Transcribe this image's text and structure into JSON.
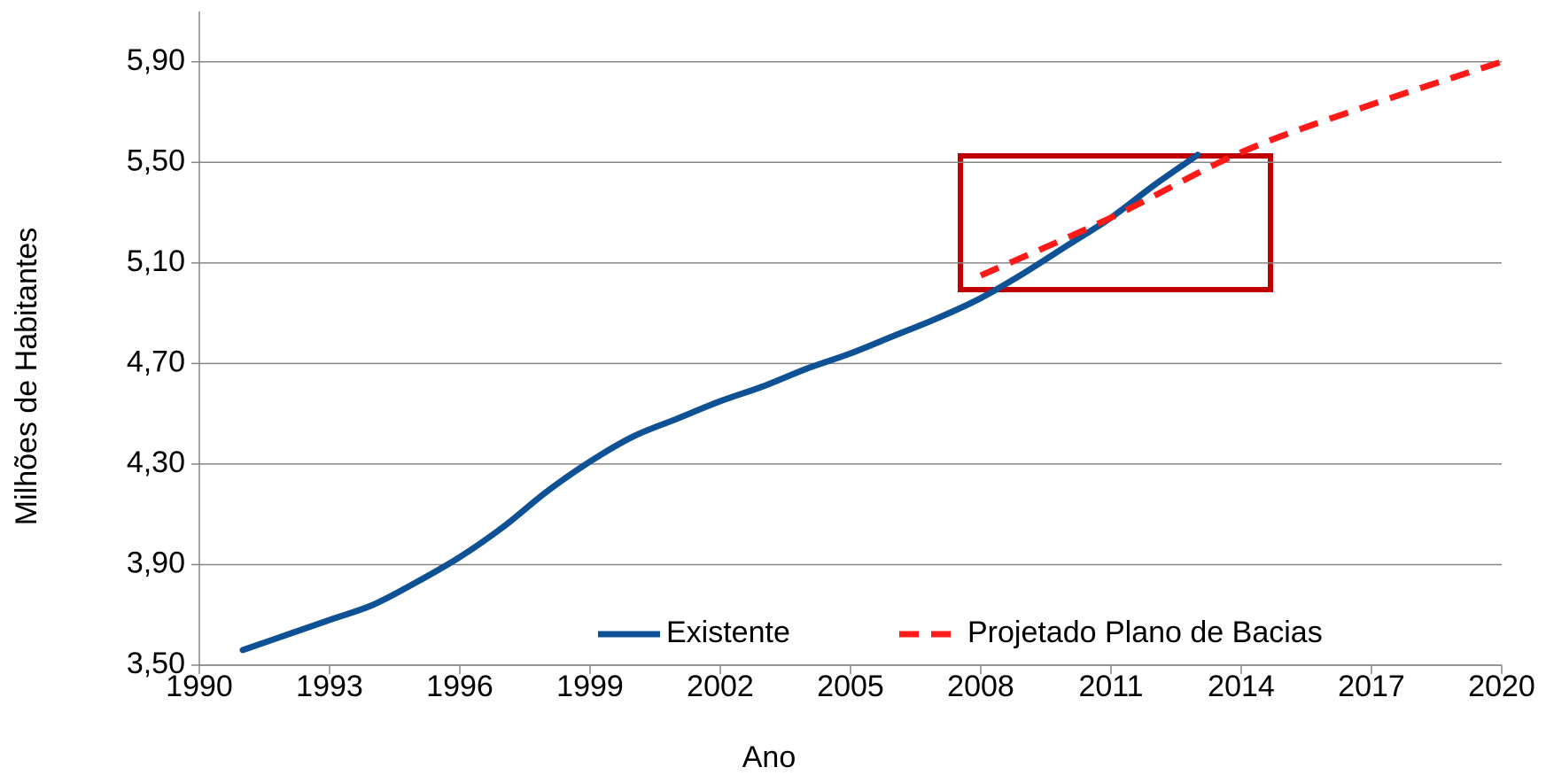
{
  "chart_data": {
    "type": "line",
    "x_label": "Ano",
    "y_label": "Milhões de Habitantes",
    "xlim": [
      1990,
      2020
    ],
    "xticks": [
      1990,
      1993,
      1996,
      1999,
      2002,
      2005,
      2008,
      2011,
      2014,
      2017,
      2020
    ],
    "ylim": [
      3.5,
      6.1
    ],
    "yticks": [
      {
        "value": 3.5,
        "label": "3,50"
      },
      {
        "value": 3.9,
        "label": "3,90"
      },
      {
        "value": 4.3,
        "label": "4,30"
      },
      {
        "value": 4.7,
        "label": "4,70"
      },
      {
        "value": 5.1,
        "label": "5,10"
      },
      {
        "value": 5.5,
        "label": "5,50"
      },
      {
        "value": 5.9,
        "label": "5,90"
      }
    ],
    "grid": true,
    "series": [
      {
        "name": "Existente",
        "color": "#0f5195",
        "dash": false,
        "x": [
          1991,
          1992,
          1993,
          1994,
          1995,
          1996,
          1997,
          1998,
          1999,
          2000,
          2001,
          2002,
          2003,
          2004,
          2005,
          2006,
          2007,
          2008,
          2009,
          2010,
          2011,
          2012,
          2013
        ],
        "values": [
          3.56,
          3.62,
          3.68,
          3.74,
          3.83,
          3.93,
          4.05,
          4.19,
          4.31,
          4.41,
          4.48,
          4.55,
          4.61,
          4.68,
          4.74,
          4.81,
          4.88,
          4.96,
          5.06,
          5.17,
          5.28,
          5.41,
          5.53
        ]
      },
      {
        "name": "Projetado Plano de Bacias",
        "color": "#ff1a1a",
        "dash": true,
        "x": [
          2008,
          2011,
          2014,
          2017,
          2020
        ],
        "values": [
          5.05,
          5.28,
          5.54,
          5.73,
          5.9
        ]
      }
    ]
  }
}
